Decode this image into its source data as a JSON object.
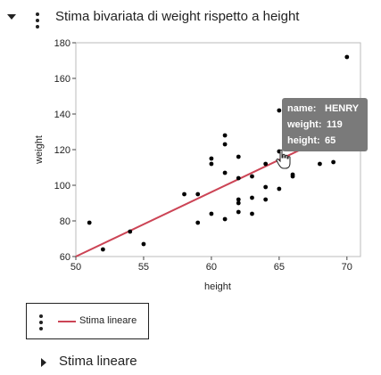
{
  "header": {
    "title": "Stima bivariata di weight rispetto a height"
  },
  "chart_data": {
    "type": "scatter",
    "xlabel": "height",
    "ylabel": "weight",
    "xlim": [
      50,
      71
    ],
    "ylim": [
      60,
      180
    ],
    "xticks": [
      50,
      55,
      60,
      65,
      70
    ],
    "yticks": [
      60,
      80,
      100,
      120,
      140,
      160,
      180
    ],
    "grid": false,
    "points": [
      {
        "x": 51,
        "y": 79
      },
      {
        "x": 52,
        "y": 64
      },
      {
        "x": 54,
        "y": 74
      },
      {
        "x": 55,
        "y": 67
      },
      {
        "x": 58,
        "y": 95
      },
      {
        "x": 59,
        "y": 95
      },
      {
        "x": 59,
        "y": 79
      },
      {
        "x": 60,
        "y": 84
      },
      {
        "x": 60,
        "y": 112
      },
      {
        "x": 60,
        "y": 115
      },
      {
        "x": 61,
        "y": 128
      },
      {
        "x": 61,
        "y": 123
      },
      {
        "x": 61,
        "y": 107
      },
      {
        "x": 61,
        "y": 81
      },
      {
        "x": 62,
        "y": 116
      },
      {
        "x": 62,
        "y": 104
      },
      {
        "x": 62,
        "y": 92
      },
      {
        "x": 62,
        "y": 90
      },
      {
        "x": 62,
        "y": 85
      },
      {
        "x": 63,
        "y": 105
      },
      {
        "x": 63,
        "y": 93
      },
      {
        "x": 63,
        "y": 84
      },
      {
        "x": 64,
        "y": 112
      },
      {
        "x": 64,
        "y": 99
      },
      {
        "x": 64,
        "y": 92
      },
      {
        "x": 65,
        "y": 142
      },
      {
        "x": 65,
        "y": 119
      },
      {
        "x": 65,
        "y": 98
      },
      {
        "x": 66,
        "y": 106
      },
      {
        "x": 66,
        "y": 105
      },
      {
        "x": 68,
        "y": 112
      },
      {
        "x": 69,
        "y": 113
      },
      {
        "x": 70,
        "y": 172
      }
    ],
    "fit_line": {
      "name": "Stima lineare",
      "x": [
        50,
        71
      ],
      "y": [
        60,
        136
      ],
      "color": "#cc4455"
    },
    "tooltip": {
      "name_label": "name:",
      "name_value": "HENRY",
      "weight_label": "weight:",
      "weight_value": "119",
      "height_label": "height:",
      "height_value": "65"
    }
  },
  "legend": {
    "label": "Stima lineare"
  },
  "section": {
    "label": "Stima lineare"
  }
}
